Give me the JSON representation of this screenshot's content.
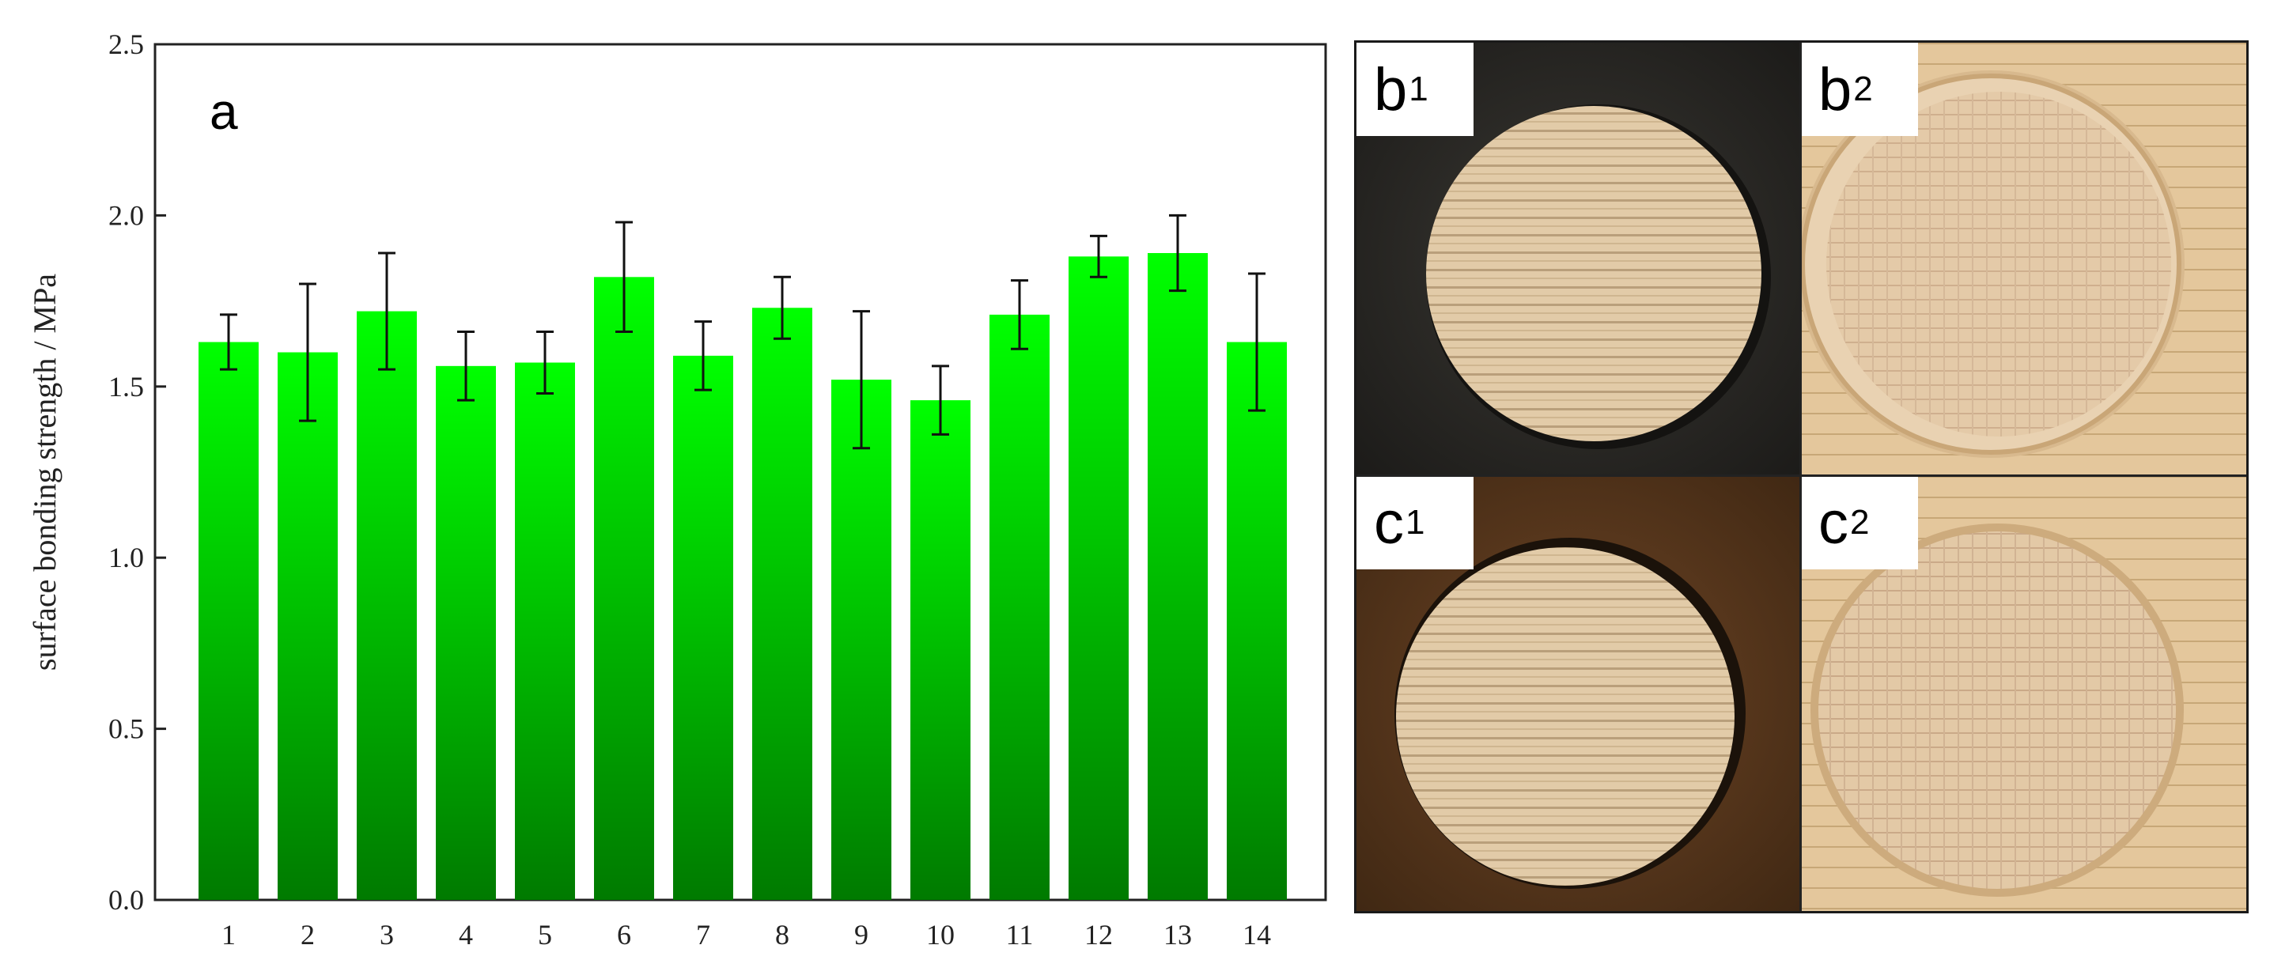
{
  "chart_data": {
    "type": "bar",
    "panel_label": "a",
    "ylabel": "surface bonding strength / MPa",
    "xlabel": "",
    "ylim": [
      0,
      2.5
    ],
    "yticks": [
      "0.0",
      "0.5",
      "1.0",
      "1.5",
      "2.0",
      "2.5"
    ],
    "categories": [
      "1",
      "2",
      "3",
      "4",
      "5",
      "6",
      "7",
      "8",
      "9",
      "10",
      "11",
      "12",
      "13",
      "14"
    ],
    "values": [
      1.63,
      1.6,
      1.72,
      1.56,
      1.57,
      1.82,
      1.59,
      1.73,
      1.52,
      1.46,
      1.71,
      1.88,
      1.89,
      1.63
    ],
    "errors": [
      0.08,
      0.2,
      0.17,
      0.1,
      0.09,
      0.16,
      0.1,
      0.09,
      0.2,
      0.1,
      0.1,
      0.06,
      0.11,
      0.2
    ],
    "grid": false,
    "bar_color_top": "#00ff00",
    "bar_color_bottom": "#007a00"
  },
  "photos": {
    "b1": {
      "letter": "b",
      "sub": "1"
    },
    "b2": {
      "letter": "b",
      "sub": "2"
    },
    "c1": {
      "letter": "c",
      "sub": "1"
    },
    "c2": {
      "letter": "c",
      "sub": "2"
    }
  }
}
